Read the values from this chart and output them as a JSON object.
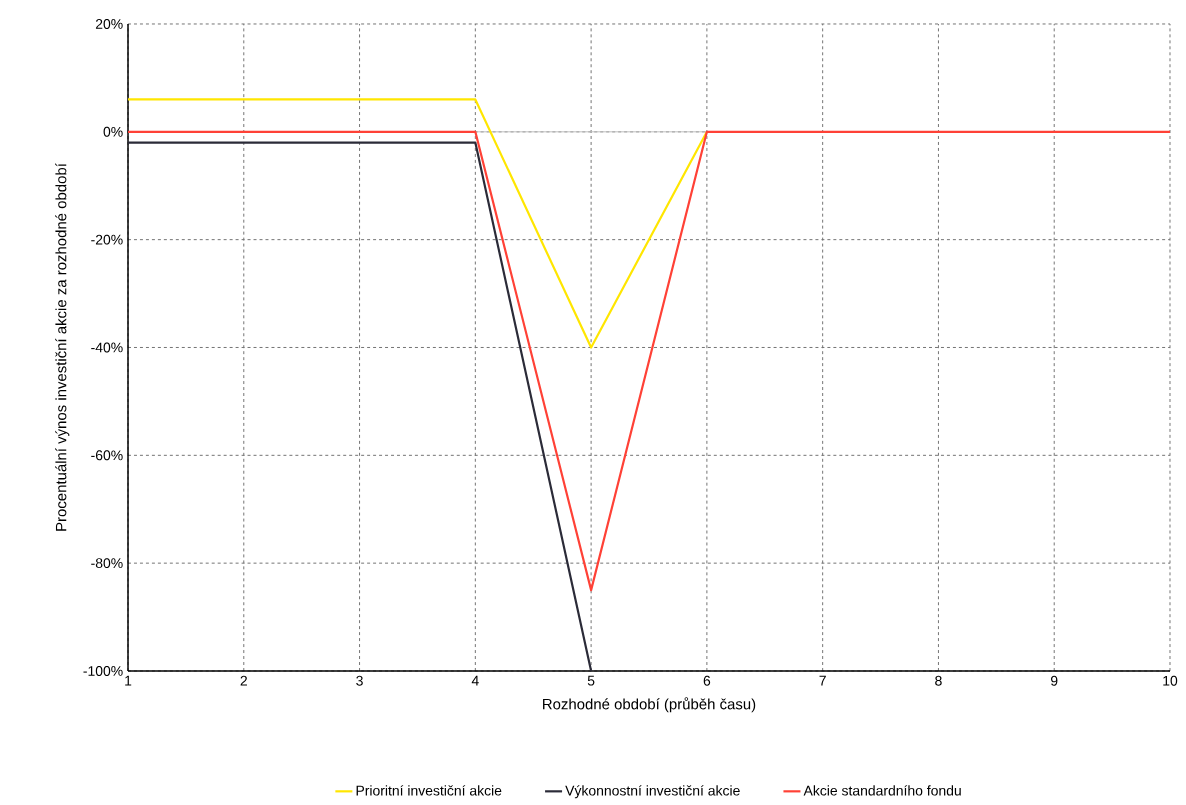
{
  "chart_data": {
    "type": "line",
    "xlabel": "Rozhodné období (průběh času)",
    "ylabel": "Procentuální výnos investiční akcie za rozhodné období",
    "x": [
      1,
      2,
      3,
      4,
      5,
      6,
      7,
      8,
      9,
      10
    ],
    "series": [
      {
        "name": "Prioritní investiční akcie",
        "color": "#ffe600",
        "values": [
          6,
          6,
          6,
          6,
          -40,
          0,
          null,
          null,
          null,
          null
        ]
      },
      {
        "name": "Výkonnostní investiční akcie",
        "color": "#2b2b38",
        "values": [
          -2,
          -2,
          -2,
          -2,
          -100,
          null,
          null,
          null,
          null,
          null
        ]
      },
      {
        "name": "Akcie standardního fondu",
        "color": "#ff4136",
        "values": [
          0,
          0,
          0,
          0,
          -85,
          0,
          0,
          0,
          0,
          0
        ]
      }
    ],
    "xlim": [
      1,
      10
    ],
    "xticks": [
      1,
      2,
      3,
      4,
      5,
      6,
      7,
      8,
      9,
      10
    ],
    "ylim": [
      -100,
      20
    ],
    "yticks": [
      {
        "value": -100,
        "label": "-100%"
      },
      {
        "value": -80,
        "label": "-80%"
      },
      {
        "value": -60,
        "label": "-60%"
      },
      {
        "value": -40,
        "label": "-40%"
      },
      {
        "value": -20,
        "label": "-20%"
      },
      {
        "value": 0,
        "label": "0%"
      },
      {
        "value": 20,
        "label": "20%"
      }
    ],
    "ref_lines": [
      {
        "axis": "y",
        "value": 0,
        "color": "#bfbfbf"
      }
    ],
    "grid": true,
    "legend": "bottom",
    "marker": "none",
    "line_style": "solid"
  }
}
